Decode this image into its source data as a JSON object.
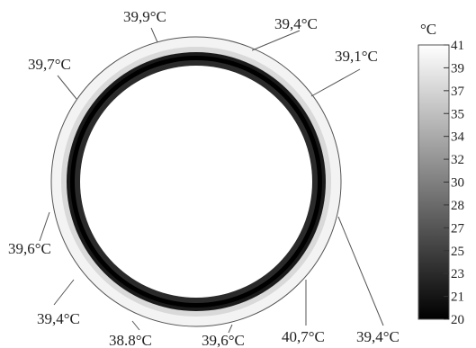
{
  "figure": {
    "unit": "°C",
    "annotations": [
      {
        "id": "top",
        "text": "39,9°C"
      },
      {
        "id": "upper-right-1",
        "text": "39,4°C"
      },
      {
        "id": "upper-right-2",
        "text": "39,1°C"
      },
      {
        "id": "upper-left",
        "text": "39,7°C"
      },
      {
        "id": "left",
        "text": "39,6°C"
      },
      {
        "id": "lower-left",
        "text": "39,4°C"
      },
      {
        "id": "bottom-left",
        "text": "38.8°C"
      },
      {
        "id": "bottom-mid",
        "text": "39,6°C"
      },
      {
        "id": "bottom-right-1",
        "text": "40,7°C"
      },
      {
        "id": "bottom-right-2",
        "text": "39,4°C"
      }
    ],
    "colorbar": {
      "min": 20,
      "max": 41,
      "ticks": [
        "41",
        "39",
        "37",
        "35",
        "34",
        "32",
        "30",
        "28",
        "27",
        "25",
        "23",
        "21",
        "20"
      ],
      "color_low": "#000000",
      "color_high": "#ffffff"
    }
  }
}
